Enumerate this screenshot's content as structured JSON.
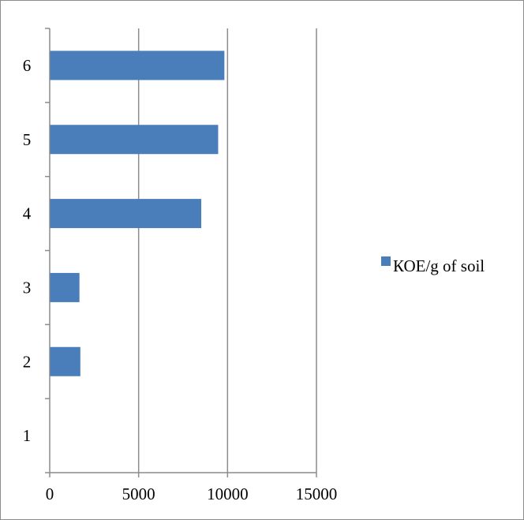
{
  "chart_data": {
    "type": "bar",
    "orientation": "horizontal",
    "categories": [
      "1",
      "2",
      "3",
      "4",
      "5",
      "6"
    ],
    "series": [
      {
        "name": "КОЕ/g of soil",
        "color": "#4a7ebb",
        "values": [
          0,
          1700,
          1650,
          8500,
          9450,
          9800
        ]
      }
    ],
    "x_ticks": [
      "0",
      "5000",
      "10000",
      "15000"
    ],
    "xlim": [
      0,
      15000
    ],
    "grid": "vertical",
    "legend": {
      "position": "right",
      "entries": [
        "КОЕ/g of soil"
      ]
    }
  }
}
